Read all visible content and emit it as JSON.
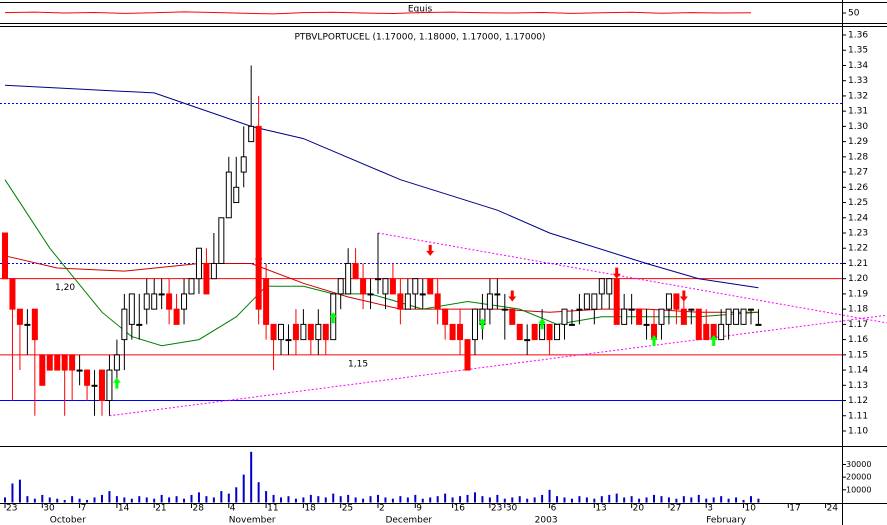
{
  "chart_data": [
    {
      "type": "line",
      "title": "Equis",
      "x": [
        0,
        4,
        8,
        12,
        16,
        20,
        24,
        28,
        32,
        36,
        40,
        44,
        48,
        52,
        56,
        60,
        64,
        68,
        72,
        76,
        80,
        84,
        88,
        92,
        96,
        100
      ],
      "values": [
        52,
        55,
        50,
        53,
        48,
        51,
        56,
        53,
        49,
        45,
        52,
        54,
        50,
        47,
        53,
        55,
        51,
        50,
        53,
        48,
        51,
        54,
        49,
        52,
        50,
        51
      ],
      "color": "#ff0000",
      "ylim": [
        0,
        100
      ],
      "yticks": [
        50
      ]
    },
    {
      "type": "candlestick",
      "title": "PTBVLPORTUCEL (1.17000, 1.18000, 1.17000, 1.17000)",
      "categories": [
        "23",
        null,
        null,
        null,
        null,
        "30",
        null,
        null,
        null,
        null,
        "7",
        null,
        null,
        null,
        null,
        "14",
        null,
        null,
        null,
        null,
        "21",
        null,
        null,
        null,
        null,
        "28",
        null,
        null,
        null,
        null,
        "4",
        null,
        null,
        null,
        null,
        "11",
        null,
        null,
        null,
        null,
        "18",
        null,
        null,
        null,
        null,
        "25",
        null,
        null,
        null,
        null,
        "2",
        null,
        null,
        null,
        null,
        "9",
        null,
        null,
        null,
        null,
        "16",
        null,
        null,
        null,
        null,
        "23",
        null,
        "30",
        null,
        null,
        null,
        null,
        null,
        "6",
        null,
        null,
        null,
        null,
        null,
        "13",
        null,
        null,
        null,
        null,
        "20",
        null,
        null,
        null,
        null,
        "27",
        null,
        null,
        null,
        null,
        "3",
        null,
        null,
        null,
        null,
        "10",
        null,
        null,
        null,
        null,
        null,
        "17",
        null,
        null,
        null,
        null,
        "24"
      ],
      "months": [
        {
          "index": 6,
          "label": "October"
        },
        {
          "index": 30,
          "label": "November"
        },
        {
          "index": 51,
          "label": "December"
        },
        {
          "index": 71,
          "label": "2003"
        },
        {
          "index": 94,
          "label": "February"
        }
      ],
      "open": [
        1.23,
        1.2,
        1.18,
        1.17,
        1.18,
        1.15,
        1.15,
        1.15,
        1.15,
        1.15,
        1.14,
        1.14,
        1.13,
        1.14,
        1.12,
        1.14,
        1.16,
        1.17,
        1.17,
        1.18,
        1.18,
        1.19,
        1.19,
        1.18,
        1.18,
        1.19,
        1.2,
        1.21,
        1.2,
        1.21,
        1.24,
        1.25,
        1.27,
        1.29,
        1.3,
        1.2,
        1.17,
        1.16,
        1.16,
        1.17,
        1.16,
        1.17,
        1.16,
        1.17,
        1.16,
        1.19,
        1.19,
        1.21,
        1.2,
        1.19,
        1.2,
        1.19,
        1.2,
        1.19,
        1.18,
        1.19,
        1.19,
        1.2,
        1.19,
        1.18,
        1.17,
        1.17,
        1.16,
        1.16,
        1.17,
        1.18,
        1.19,
        1.18,
        1.18,
        1.17,
        1.16,
        1.17,
        1.16,
        1.17,
        1.16,
        1.17,
        1.17,
        1.18,
        1.18,
        1.18,
        1.19,
        1.19,
        1.2,
        1.17,
        1.18,
        1.18,
        1.17,
        1.17,
        1.17,
        1.18,
        1.19,
        1.18,
        1.18,
        1.18,
        1.17,
        1.17,
        1.16,
        1.17,
        1.17,
        1.17,
        1.18,
        1.17,
        null,
        null,
        null,
        null,
        null,
        null,
        null,
        null,
        null
      ],
      "high": [
        1.23,
        1.2,
        1.18,
        1.18,
        1.18,
        1.15,
        1.15,
        1.15,
        1.15,
        1.15,
        1.15,
        1.14,
        1.14,
        1.14,
        1.15,
        1.16,
        1.19,
        1.19,
        1.19,
        1.2,
        1.2,
        1.2,
        1.2,
        1.19,
        1.2,
        1.2,
        1.22,
        1.22,
        1.23,
        1.24,
        1.28,
        1.28,
        1.3,
        1.34,
        1.32,
        1.21,
        1.17,
        1.17,
        1.17,
        1.18,
        1.18,
        1.17,
        1.18,
        1.17,
        1.19,
        1.2,
        1.22,
        1.22,
        1.21,
        1.2,
        1.23,
        1.2,
        1.21,
        1.2,
        1.2,
        1.2,
        1.2,
        1.2,
        1.2,
        1.18,
        1.17,
        1.18,
        1.16,
        1.18,
        1.19,
        1.2,
        1.2,
        1.19,
        1.18,
        1.17,
        1.17,
        1.17,
        1.18,
        1.17,
        1.17,
        1.18,
        1.18,
        1.19,
        1.19,
        1.19,
        1.2,
        1.2,
        1.2,
        1.19,
        1.19,
        1.18,
        1.18,
        1.18,
        1.18,
        1.19,
        1.19,
        1.19,
        1.18,
        1.18,
        1.18,
        1.17,
        1.18,
        1.18,
        1.18,
        1.18,
        1.18,
        1.18,
        null,
        null,
        null,
        null,
        null,
        null,
        null,
        null,
        null
      ],
      "low": [
        1.2,
        1.12,
        1.14,
        1.15,
        1.11,
        1.13,
        1.14,
        1.14,
        1.11,
        1.12,
        1.13,
        1.12,
        1.11,
        1.11,
        1.11,
        1.13,
        1.14,
        1.16,
        1.16,
        1.17,
        1.18,
        1.18,
        1.17,
        1.17,
        1.17,
        1.19,
        1.19,
        1.19,
        1.2,
        1.21,
        1.24,
        1.25,
        1.26,
        1.29,
        1.17,
        1.16,
        1.14,
        1.15,
        1.15,
        1.15,
        1.16,
        1.15,
        1.15,
        1.15,
        1.16,
        1.18,
        1.19,
        1.2,
        1.18,
        1.18,
        1.19,
        1.18,
        1.19,
        1.17,
        1.18,
        1.18,
        1.18,
        1.19,
        1.17,
        1.16,
        1.16,
        1.15,
        1.14,
        1.15,
        1.16,
        1.17,
        1.18,
        1.16,
        1.17,
        1.16,
        1.15,
        1.16,
        1.16,
        1.15,
        1.16,
        1.16,
        1.17,
        1.17,
        1.18,
        1.17,
        1.18,
        1.18,
        1.17,
        1.17,
        1.17,
        1.17,
        1.16,
        1.16,
        1.16,
        1.17,
        1.17,
        1.17,
        1.17,
        1.16,
        1.16,
        1.16,
        1.16,
        1.16,
        1.17,
        1.17,
        1.17,
        1.17,
        null,
        null,
        null,
        null,
        null,
        null,
        null,
        null,
        null
      ],
      "close": [
        1.2,
        1.18,
        1.17,
        1.17,
        1.16,
        1.13,
        1.14,
        1.14,
        1.14,
        1.14,
        1.14,
        1.13,
        1.13,
        1.12,
        1.14,
        1.15,
        1.18,
        1.19,
        1.17,
        1.19,
        1.19,
        1.19,
        1.18,
        1.17,
        1.19,
        1.2,
        1.22,
        1.19,
        1.21,
        1.24,
        1.27,
        1.26,
        1.28,
        1.3,
        1.18,
        1.17,
        1.16,
        1.17,
        1.16,
        1.16,
        1.17,
        1.16,
        1.17,
        1.16,
        1.19,
        1.2,
        1.21,
        1.2,
        1.19,
        1.19,
        1.2,
        1.2,
        1.19,
        1.18,
        1.19,
        1.2,
        1.19,
        1.19,
        1.18,
        1.17,
        1.16,
        1.16,
        1.14,
        1.18,
        1.18,
        1.19,
        1.19,
        1.18,
        1.17,
        1.16,
        1.16,
        1.16,
        1.17,
        1.16,
        1.17,
        1.18,
        1.17,
        1.18,
        1.19,
        1.19,
        1.2,
        1.2,
        1.17,
        1.18,
        1.18,
        1.17,
        1.17,
        1.16,
        1.18,
        1.19,
        1.18,
        1.17,
        1.18,
        1.16,
        1.16,
        1.16,
        1.17,
        1.18,
        1.18,
        1.18,
        1.18,
        1.17,
        null,
        null,
        null,
        null,
        null,
        null,
        null,
        null,
        null
      ],
      "colors": {
        "up": "#ffffff",
        "down": "#ff0000",
        "outline": "#000000"
      },
      "xlim": [
        0,
        112.2
      ],
      "ylim": [
        1.0908,
        1.3646
      ],
      "yticks": [
        {
          "value": 1.1,
          "label": "1.10"
        },
        1.11,
        1.12,
        1.13,
        1.14,
        1.15,
        1.16,
        1.17,
        1.18,
        1.19,
        {
          "value": 1.2,
          "label": "1.20"
        },
        1.21,
        1.22,
        1.23,
        1.24,
        1.25,
        1.26,
        1.27,
        1.28,
        1.29,
        {
          "value": 1.3,
          "label": "1.30"
        },
        1.31,
        1.32,
        1.33,
        1.34,
        1.35,
        1.36
      ],
      "averages": [
        {
          "color": "#00008b",
          "x": [
            0,
            20,
            33,
            40,
            53,
            66,
            73,
            86,
            93,
            101
          ],
          "values": [
            1.327,
            1.322,
            1.3,
            1.292,
            1.265,
            1.245,
            1.23,
            1.21,
            1.2,
            1.194
          ]
        },
        {
          "color": "#cc0000",
          "x": [
            0,
            7,
            16,
            26,
            33,
            40,
            46,
            53,
            60,
            66,
            73,
            80,
            86,
            93,
            101
          ],
          "values": [
            1.215,
            1.207,
            1.205,
            1.21,
            1.21,
            1.197,
            1.188,
            1.18,
            1.18,
            1.18,
            1.178,
            1.18,
            1.18,
            1.178,
            1.178
          ]
        },
        {
          "color": "#008000",
          "x": [
            0,
            6,
            13,
            17,
            21,
            26,
            31,
            35,
            40,
            44,
            49,
            56,
            62,
            69,
            74,
            80,
            86,
            93,
            101
          ],
          "values": [
            1.265,
            1.22,
            1.178,
            1.162,
            1.156,
            1.16,
            1.175,
            1.195,
            1.195,
            1.19,
            1.19,
            1.18,
            1.185,
            1.18,
            1.17,
            1.175,
            1.175,
            1.175,
            1.178
          ]
        }
      ],
      "levels": [
        {
          "value": 1.2,
          "color": "#ff0000",
          "style": "solid",
          "label": "1,20"
        },
        {
          "value": 1.15,
          "color": "#ff0000",
          "style": "solid",
          "label": "1,15"
        },
        {
          "value": 1.12,
          "color": "#0000ff",
          "style": "solid"
        },
        {
          "value": 1.315,
          "color": "#0000ff",
          "style": "dotted"
        },
        {
          "value": 1.21,
          "color": "#0000ff",
          "style": "dotted"
        }
      ],
      "trendlines": [
        {
          "color": "#ff00ff",
          "x": [
            50,
            118.2
          ],
          "values": [
            1.23,
            1.171
          ]
        },
        {
          "color": "#ff00ff",
          "x": [
            14,
            118.2
          ],
          "values": [
            1.11,
            1.176
          ]
        }
      ],
      "signals": [
        {
          "type": "sell",
          "index": 34,
          "price": 1.21
        },
        {
          "type": "sell",
          "index": 57,
          "price": 1.215
        },
        {
          "type": "sell",
          "index": 68,
          "price": 1.185
        },
        {
          "type": "sell",
          "index": 82,
          "price": 1.2
        },
        {
          "type": "sell",
          "index": 91,
          "price": 1.185
        },
        {
          "type": "buy",
          "index": 15,
          "price": 1.135
        },
        {
          "type": "buy",
          "index": 44,
          "price": 1.178
        },
        {
          "type": "buy",
          "index": 64,
          "price": 1.174
        },
        {
          "type": "buy",
          "index": 72,
          "price": 1.174
        },
        {
          "type": "buy",
          "index": 87,
          "price": 1.163
        },
        {
          "type": "buy",
          "index": 95,
          "price": 1.163
        }
      ],
      "signal_colors": {
        "sell": "#ff0000",
        "buy": "#00ff00"
      }
    },
    {
      "type": "bar",
      "color": "#0000cc",
      "values": [
        4000,
        15000,
        18000,
        5000,
        3000,
        6000,
        4000,
        3000,
        2000,
        5000,
        3000,
        2000,
        4000,
        6000,
        9000,
        5000,
        4000,
        3000,
        5000,
        4000,
        3000,
        6000,
        4000,
        5000,
        3000,
        6000,
        8000,
        5000,
        4000,
        9000,
        7000,
        12000,
        22000,
        40000,
        16000,
        9000,
        6000,
        4000,
        5000,
        3000,
        4000,
        6000,
        5000,
        4000,
        7000,
        5000,
        6000,
        4000,
        3000,
        5000,
        6000,
        4000,
        3000,
        5000,
        4000,
        6000,
        3000,
        4000,
        5000,
        7000,
        4000,
        5000,
        6000,
        8000,
        5000,
        4000,
        6000,
        3000,
        4000,
        5000,
        3000,
        4000,
        6000,
        10000,
        5000,
        4000,
        3000,
        5000,
        4000,
        3000,
        5000,
        6000,
        7000,
        4000,
        5000,
        3000,
        4000,
        6000,
        5000,
        4000,
        3000,
        5000,
        4000,
        6000,
        3000,
        4000,
        5000,
        3000,
        4000,
        2000,
        5000,
        3000,
        null,
        null,
        null,
        null,
        null,
        null,
        null,
        null,
        null
      ],
      "ylim": [
        0,
        43000
      ],
      "yticks": [
        10000,
        20000,
        30000
      ]
    }
  ]
}
